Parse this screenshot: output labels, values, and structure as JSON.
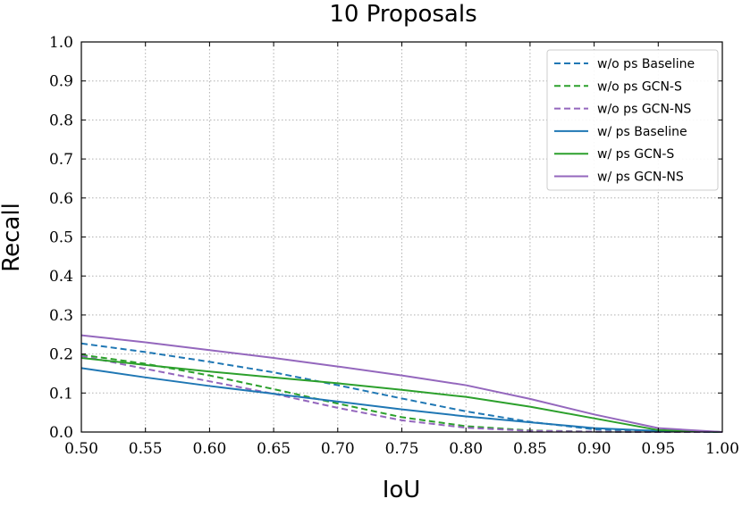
{
  "chart_data": {
    "type": "line",
    "title": "10 Proposals",
    "xlabel": "IoU",
    "ylabel": "Recall",
    "xlim": [
      0.5,
      1.0
    ],
    "ylim": [
      0.0,
      1.0
    ],
    "xticks": [
      "0.50",
      "0.55",
      "0.60",
      "0.65",
      "0.70",
      "0.75",
      "0.80",
      "0.85",
      "0.90",
      "0.95",
      "1.00"
    ],
    "yticks": [
      "0.0",
      "0.1",
      "0.2",
      "0.3",
      "0.4",
      "0.5",
      "0.6",
      "0.7",
      "0.8",
      "0.9",
      "1.0"
    ],
    "grid": true,
    "legend_position": "top-right",
    "x": [
      0.5,
      0.55,
      0.6,
      0.65,
      0.7,
      0.75,
      0.8,
      0.85,
      0.9,
      0.95,
      1.0
    ],
    "series": [
      {
        "name": "w/o ps Baseline",
        "color": "#1f77b4",
        "style": "dashed",
        "values": [
          0.227,
          0.205,
          0.18,
          0.153,
          0.12,
          0.086,
          0.053,
          0.026,
          0.007,
          0.002,
          0.0
        ]
      },
      {
        "name": "w/o ps GCN-S",
        "color": "#2ca02c",
        "style": "dashed",
        "values": [
          0.198,
          0.175,
          0.145,
          0.11,
          0.073,
          0.038,
          0.015,
          0.004,
          0.001,
          0.0,
          0.0
        ]
      },
      {
        "name": "w/o ps GCN-NS",
        "color": "#9467bd",
        "style": "dashed",
        "values": [
          0.195,
          0.162,
          0.13,
          0.098,
          0.062,
          0.03,
          0.011,
          0.003,
          0.001,
          0.0,
          0.0
        ]
      },
      {
        "name": "w/ ps Baseline",
        "color": "#1f77b4",
        "style": "solid",
        "values": [
          0.164,
          0.14,
          0.118,
          0.098,
          0.078,
          0.058,
          0.04,
          0.025,
          0.01,
          0.003,
          0.0
        ]
      },
      {
        "name": "w/ ps GCN-S",
        "color": "#2ca02c",
        "style": "solid",
        "values": [
          0.19,
          0.172,
          0.155,
          0.14,
          0.125,
          0.108,
          0.09,
          0.065,
          0.035,
          0.005,
          0.0
        ]
      },
      {
        "name": "w/ ps GCN-NS",
        "color": "#9467bd",
        "style": "solid",
        "values": [
          0.248,
          0.23,
          0.21,
          0.19,
          0.168,
          0.145,
          0.12,
          0.085,
          0.045,
          0.01,
          0.0
        ]
      }
    ]
  }
}
